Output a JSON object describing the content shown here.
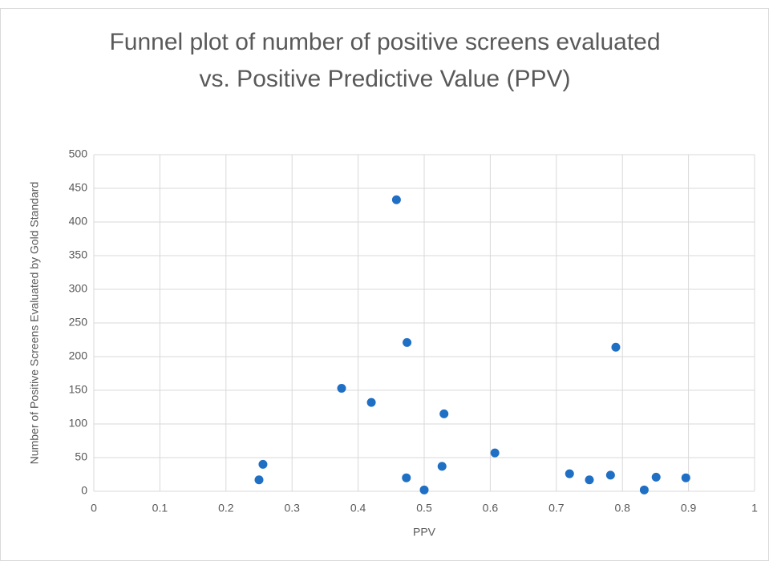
{
  "chart_data": {
    "type": "scatter",
    "title": "Funnel plot of number of positive screens evaluated\nvs. Positive Predictive Value (PPV)",
    "x_label": "PPV",
    "y_label": "Number of Positive Screens Evaluated by Gold Standard",
    "color": "#1f6fc4",
    "x": [
      0.25,
      0.256,
      0.375,
      0.42,
      0.458,
      0.474,
      0.473,
      0.5,
      0.53,
      0.527,
      0.607,
      0.72,
      0.75,
      0.782,
      0.79,
      0.833,
      0.851,
      0.896
    ],
    "values": [
      17,
      40,
      153,
      132,
      433,
      221,
      20,
      2,
      115,
      37,
      57,
      26,
      17,
      24,
      214,
      2,
      21,
      20
    ],
    "xlim": [
      0,
      1
    ],
    "xticks": [
      0,
      0.1,
      0.2,
      0.3,
      0.4,
      0.5,
      0.6,
      0.7,
      0.8,
      0.9,
      1
    ],
    "ylim": [
      0,
      500
    ],
    "yticks": [
      0,
      50,
      100,
      150,
      200,
      250,
      300,
      350,
      400,
      450,
      500
    ],
    "grid": true
  }
}
